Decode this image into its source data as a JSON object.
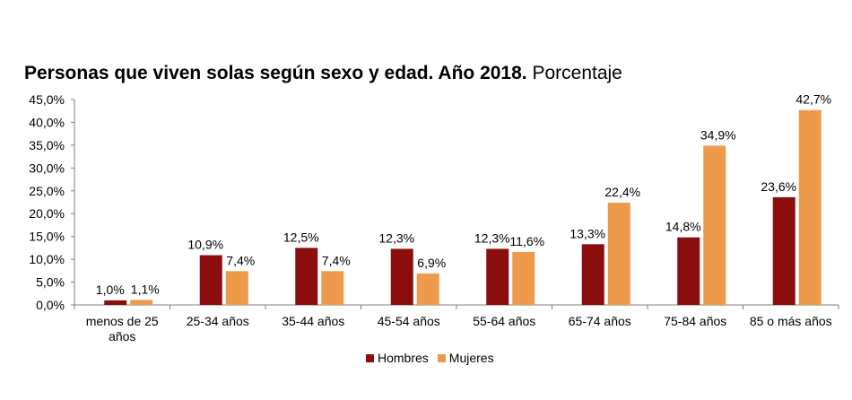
{
  "title": {
    "bold": "Personas que viven solas según sexo y edad. Año 2018.",
    "normal": "Porcentaje"
  },
  "chart_data": {
    "type": "bar",
    "categories": [
      [
        "menos de 25",
        "años"
      ],
      [
        "25-34 años"
      ],
      [
        "35-44 años"
      ],
      [
        "45-54 años"
      ],
      [
        "55-64 años"
      ],
      [
        "65-74 años"
      ],
      [
        "75-84 años"
      ],
      [
        "85 o más años"
      ]
    ],
    "series": [
      {
        "name": "Hombres",
        "color": "#8B0E0E",
        "values": [
          1.0,
          10.9,
          12.5,
          12.3,
          12.3,
          13.3,
          14.8,
          23.6
        ],
        "labels": [
          "1,0%",
          "10,9%",
          "12,5%",
          "12,3%",
          "12,3%",
          "13,3%",
          "14,8%",
          "23,6%"
        ]
      },
      {
        "name": "Mujeres",
        "color": "#EE9A4D",
        "values": [
          1.1,
          7.4,
          7.4,
          6.9,
          11.6,
          22.4,
          34.9,
          42.7
        ],
        "labels": [
          "1,1%",
          "7,4%",
          "7,4%",
          "6,9%",
          "11,6%",
          "22,4%",
          "34,9%",
          "42,7%"
        ]
      }
    ],
    "ylim": [
      0,
      45
    ],
    "yticks": [
      "0,0%",
      "5,0%",
      "10,0%",
      "15,0%",
      "20,0%",
      "25,0%",
      "30,0%",
      "35,0%",
      "40,0%",
      "45,0%"
    ],
    "xlabel": "",
    "ylabel": "",
    "legend_position": "bottom",
    "grid": false
  }
}
